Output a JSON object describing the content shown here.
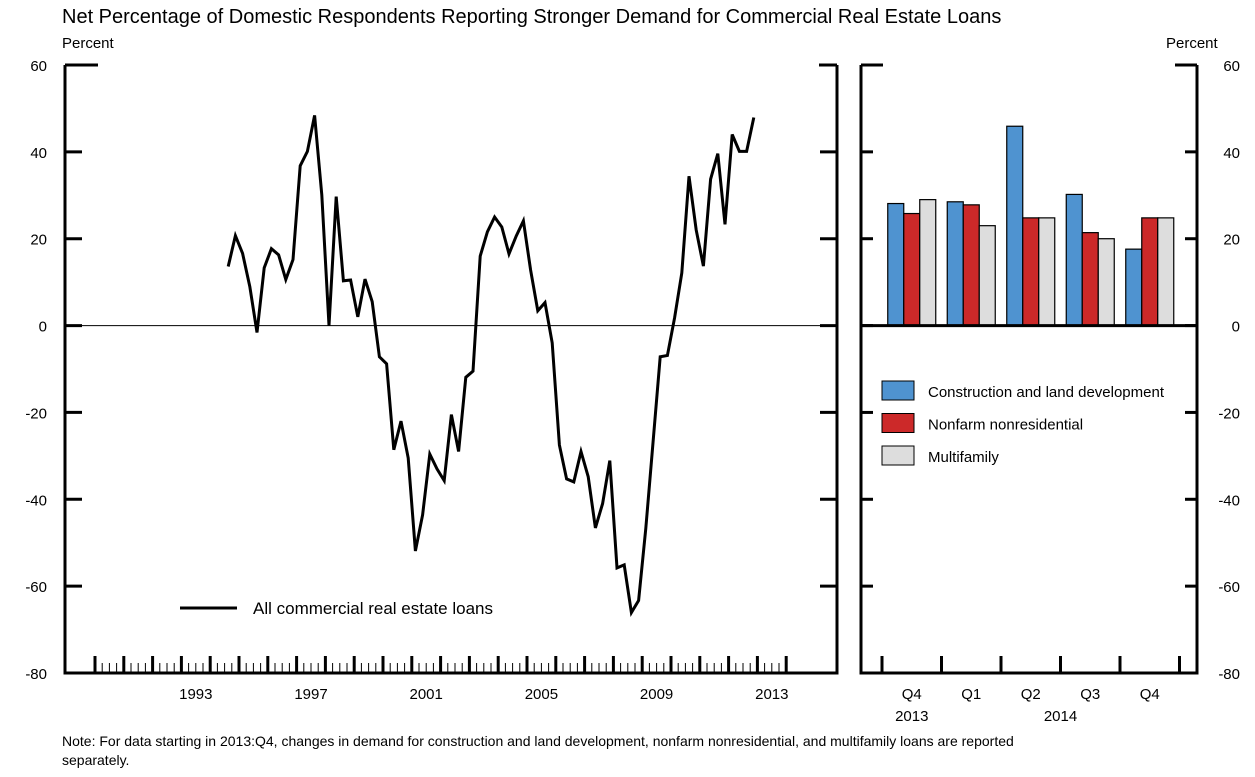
{
  "title": "Net Percentage of Domestic Respondents Reporting Stronger Demand for Commercial Real Estate Loans",
  "left_unit": "Percent",
  "right_unit": "Percent",
  "note_line1": "Note: For data starting in 2013:Q4, changes in demand for construction and land development, nonfarm nonresidential, and multifamily loans are reported",
  "note_line2": "separately.",
  "chart_data": [
    {
      "type": "line",
      "title": "",
      "ylabel": "Percent",
      "ylim": [
        -80,
        60
      ],
      "yticks": [
        60,
        40,
        20,
        0,
        -20,
        -40,
        -60,
        -80
      ],
      "xlim": [
        1990,
        2016
      ],
      "xtick_labels": [
        "1993",
        "1997",
        "2001",
        "2005",
        "2009",
        "2013"
      ],
      "legend": {
        "position": "bottom-left",
        "entries": [
          "All commercial real estate loans"
        ]
      },
      "series": [
        {
          "name": "All commercial real estate loans",
          "color": "#000000",
          "start": "1994:Q3",
          "frequency": "quarterly",
          "values": [
            13.6,
            20.7,
            16.6,
            9.0,
            -1.6,
            13.3,
            17.7,
            16.3,
            10.6,
            15.2,
            36.8,
            40.1,
            48.4,
            30.1,
            0,
            29.7,
            10.3,
            10.5,
            2.0,
            10.7,
            5.5,
            -7.2,
            -8.8,
            -28.6,
            -22.0,
            -30.5,
            -51.9,
            -43.6,
            -29.6,
            -33.0,
            -35.7,
            -20.5,
            -29.0,
            -11.9,
            -10.5,
            16.0,
            21.6,
            25.0,
            22.7,
            16.5,
            20.6,
            24.1,
            12.8,
            3.4,
            5.3,
            -4.0,
            -27.5,
            -35.3,
            -36.0,
            -29.0,
            -34.8,
            -46.6,
            -41.0,
            -31.1,
            -55.8,
            -55.1,
            -66.1,
            -63.3,
            -46.7,
            -27.0,
            -7.2,
            -6.9,
            1.8,
            12.1,
            34.4,
            22.0,
            13.7,
            33.7,
            39.6,
            23.3,
            44.0,
            40.1,
            40.1,
            47.9
          ]
        }
      ]
    },
    {
      "type": "bar",
      "title": "",
      "ylabel": "Percent",
      "ylim": [
        -80,
        60
      ],
      "yticks": [
        60,
        40,
        20,
        0,
        -20,
        -40,
        -60,
        -80
      ],
      "categories": [
        "Q4",
        "Q1",
        "Q2",
        "Q3",
        "Q4"
      ],
      "category_years": [
        "2013",
        "2014"
      ],
      "legend": {
        "position": "middle-right",
        "entries": [
          "Construction and land development",
          "Nonfarm nonresidential",
          "Multifamily"
        ]
      },
      "series": [
        {
          "name": "Construction and land development",
          "color": "#4f93d0",
          "values": [
            28.1,
            28.5,
            45.9,
            30.2,
            17.6
          ]
        },
        {
          "name": "Nonfarm nonresidential",
          "color": "#cc2929",
          "values": [
            25.8,
            27.8,
            24.8,
            21.4,
            24.8
          ]
        },
        {
          "name": "Multifamily",
          "color": "#dddddd",
          "values": [
            29.0,
            23.0,
            24.8,
            20.0,
            24.8
          ]
        }
      ]
    }
  ]
}
